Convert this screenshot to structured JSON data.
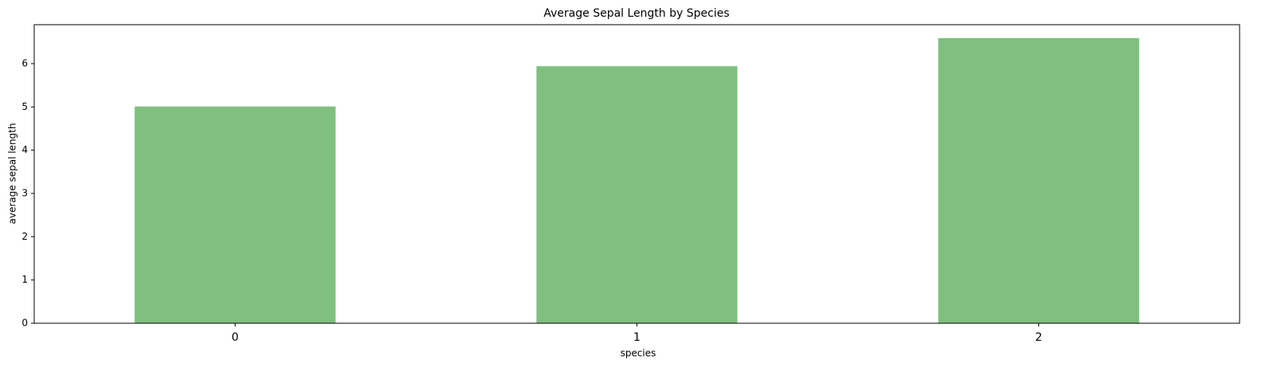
{
  "chart_data": {
    "type": "bar",
    "title": "Average Sepal Length by Species",
    "x_label": "species",
    "y_label": "average sepal length",
    "categories": [
      "0",
      "1",
      "2"
    ],
    "values": [
      5.01,
      5.94,
      6.59
    ],
    "color": "#80bf80",
    "ylim": [
      0,
      6.9
    ],
    "yticks": [
      0,
      1,
      2,
      3,
      4,
      5,
      6
    ],
    "grid": false
  }
}
